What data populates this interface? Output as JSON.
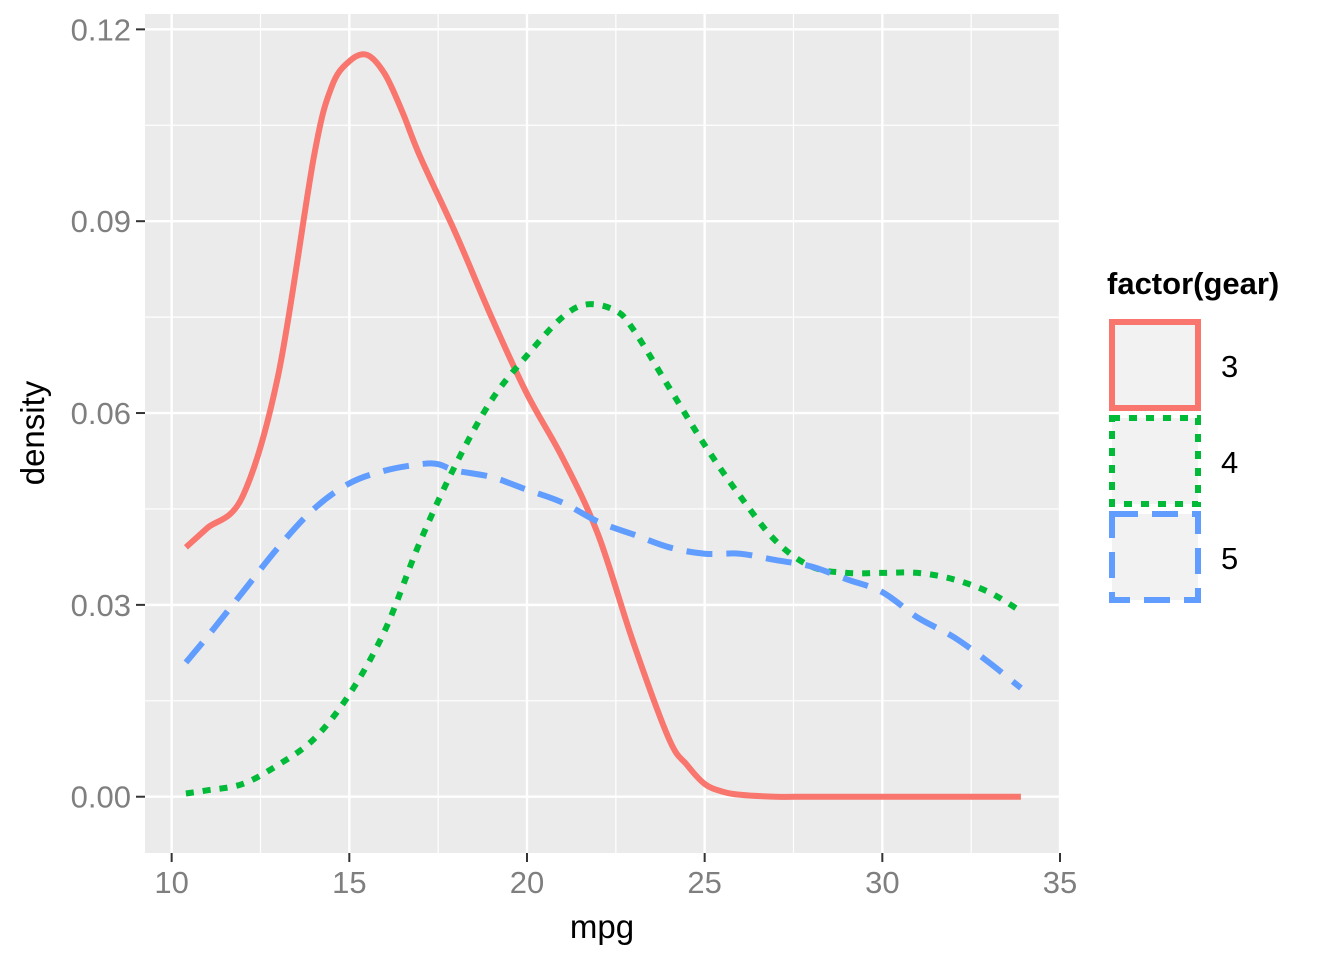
{
  "chart_data": {
    "type": "line",
    "title": "",
    "xlabel": "mpg",
    "ylabel": "density",
    "xlim": [
      9.25,
      35
    ],
    "ylim": [
      -0.0088,
      0.1224
    ],
    "x_ticks": [
      10,
      15,
      20,
      25,
      30,
      35
    ],
    "x_tick_labels": [
      "10",
      "15",
      "20",
      "25",
      "30",
      "35"
    ],
    "y_ticks": [
      0,
      0.03,
      0.06,
      0.09,
      0.12
    ],
    "y_tick_labels": [
      "0.00",
      "0.03",
      "0.06",
      "0.09",
      "0.12"
    ],
    "grid": true,
    "legend": {
      "title": "factor(gear)",
      "position": "right"
    },
    "series": [
      {
        "name": "3",
        "color": "#F8766D",
        "linetype": "solid",
        "x": [
          10.4,
          11.0,
          12.0,
          13.0,
          14.0,
          14.5,
          15.0,
          15.5,
          16.0,
          16.5,
          17.0,
          18.0,
          19.0,
          20.0,
          21.0,
          22.0,
          23.0,
          24.0,
          24.5,
          25.0,
          25.5,
          26.0,
          27.0,
          28.0,
          30.0,
          33.9
        ],
        "y": [
          0.039,
          0.042,
          0.047,
          0.066,
          0.1,
          0.111,
          0.115,
          0.116,
          0.113,
          0.107,
          0.1,
          0.088,
          0.075,
          0.063,
          0.053,
          0.041,
          0.024,
          0.009,
          0.005,
          0.002,
          0.0008,
          0.0003,
          0.0,
          0.0,
          0.0,
          0.0
        ]
      },
      {
        "name": "4",
        "color": "#00BA38",
        "linetype": "dotted",
        "x": [
          10.4,
          11.0,
          12.0,
          13.0,
          14.0,
          15.0,
          16.0,
          17.0,
          18.0,
          19.0,
          20.0,
          21.0,
          21.7,
          22.5,
          23.0,
          24.0,
          25.0,
          26.0,
          27.0,
          28.0,
          29.0,
          30.0,
          31.0,
          32.0,
          33.0,
          33.9
        ],
        "y": [
          0.0005,
          0.001,
          0.002,
          0.005,
          0.009,
          0.016,
          0.026,
          0.04,
          0.052,
          0.062,
          0.069,
          0.075,
          0.077,
          0.076,
          0.073,
          0.064,
          0.055,
          0.047,
          0.04,
          0.036,
          0.035,
          0.035,
          0.035,
          0.034,
          0.032,
          0.029
        ]
      },
      {
        "name": "5",
        "color": "#619CFF",
        "linetype": "dashed",
        "x": [
          10.4,
          11.0,
          12.0,
          13.0,
          14.0,
          15.0,
          16.0,
          17.0,
          17.5,
          18.0,
          19.0,
          20.0,
          21.0,
          22.0,
          23.0,
          24.0,
          25.0,
          26.0,
          27.0,
          28.0,
          29.0,
          30.0,
          31.0,
          32.0,
          33.0,
          33.9
        ],
        "y": [
          0.021,
          0.025,
          0.032,
          0.039,
          0.045,
          0.049,
          0.051,
          0.052,
          0.052,
          0.051,
          0.05,
          0.048,
          0.046,
          0.043,
          0.041,
          0.039,
          0.038,
          0.038,
          0.037,
          0.036,
          0.034,
          0.032,
          0.028,
          0.025,
          0.021,
          0.017
        ]
      }
    ]
  }
}
